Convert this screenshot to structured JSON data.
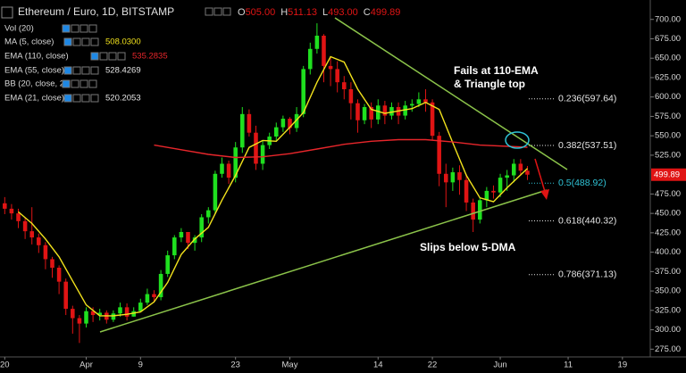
{
  "chart_data": {
    "type": "candlestick",
    "title": "Ethereum / Euro, 1D, BITSTAMP",
    "ohlc_header": [
      {
        "key": "O",
        "value": 505,
        "label": "505.00"
      },
      {
        "key": "H",
        "value": 511.13,
        "label": "511.13"
      },
      {
        "key": "L",
        "value": 493,
        "label": "493.00"
      },
      {
        "key": "C",
        "value": 499.89,
        "label": "499.89"
      }
    ],
    "indicators": [
      {
        "name": "Vol (20)"
      },
      {
        "name": "MA (5, close)",
        "color": "#f2e21c",
        "x": [
          2,
          4,
          6,
          8,
          10,
          12,
          14,
          16,
          18,
          20,
          22,
          24,
          26,
          28,
          30,
          32,
          34,
          36,
          38,
          40,
          42,
          44,
          46,
          48,
          50,
          52,
          54,
          56,
          58,
          60,
          62,
          64,
          66,
          68,
          70,
          72,
          74,
          77
        ],
        "values": [
          452,
          437,
          417,
          394,
          363,
          332,
          318,
          318,
          320,
          323,
          336,
          361,
          397,
          417,
          432,
          467,
          499,
          535,
          544,
          543,
          561,
          580,
          619,
          652,
          645,
          610,
          584,
          579,
          582,
          585,
          593,
          584,
          541,
          499,
          470,
          465,
          483,
          508.03
        ],
        "value_label": "508.0300"
      },
      {
        "name": "EMA (110, close)",
        "color": "#e8262b",
        "x": [
          22,
          26,
          30,
          34,
          38,
          42,
          46,
          50,
          54,
          58,
          62,
          66,
          70,
          77
        ],
        "values": [
          538,
          532,
          526,
          522,
          523,
          527,
          533,
          539,
          543,
          545,
          545,
          542,
          538,
          535.2835
        ]
      },
      {
        "name": "EMA (55, close)",
        "value": 528.4269
      },
      {
        "name": "BB (20, close, 2)"
      },
      {
        "name": "EMA (21, close)",
        "value": 520.2053
      }
    ],
    "candles": {
      "up_color": "#1fe01f",
      "down_color": "#e01414",
      "x": [
        0,
        1,
        2,
        3,
        4,
        5,
        6,
        7,
        8,
        9,
        10,
        11,
        12,
        13,
        14,
        15,
        16,
        17,
        18,
        19,
        20,
        21,
        22,
        23,
        24,
        25,
        26,
        27,
        28,
        29,
        30,
        31,
        32,
        33,
        34,
        35,
        36,
        37,
        38,
        39,
        40,
        41,
        42,
        43,
        44,
        45,
        46,
        47,
        48,
        49,
        50,
        51,
        52,
        53,
        54,
        55,
        56,
        57,
        58,
        59,
        60,
        61,
        62,
        63,
        64,
        65,
        66,
        67,
        68,
        69,
        70,
        71,
        72,
        73,
        74,
        75,
        76,
        77
      ],
      "open": [
        463,
        456,
        450,
        440,
        427,
        419,
        409,
        391,
        380,
        362,
        327,
        315,
        308,
        324,
        319,
        322,
        313,
        321,
        329,
        317,
        324,
        335,
        346,
        342,
        372,
        396,
        419,
        426,
        412,
        419,
        445,
        454,
        501,
        514,
        496,
        535,
        578,
        554,
        514,
        538,
        549,
        561,
        572,
        560,
        578,
        636,
        662,
        679,
        640,
        636,
        619,
        610,
        592,
        570,
        587,
        571,
        589,
        576,
        587,
        576,
        589,
        591,
        597,
        593,
        550,
        501,
        490,
        503,
        493,
        464,
        442,
        467,
        479,
        477,
        496,
        499,
        514,
        505
      ],
      "high": [
        471,
        462,
        456,
        445,
        458,
        424,
        413,
        394,
        383,
        366,
        331,
        319,
        329,
        329,
        327,
        325,
        325,
        335,
        334,
        329,
        340,
        353,
        351,
        377,
        402,
        422,
        431,
        426,
        422,
        449,
        458,
        505,
        522,
        518,
        542,
        587,
        584,
        563,
        544,
        554,
        567,
        576,
        574,
        587,
        640,
        670,
        695,
        681,
        651,
        646,
        627,
        619,
        597,
        591,
        593,
        597,
        595,
        593,
        593,
        595,
        597,
        606,
        610,
        597,
        555,
        514,
        509,
        512,
        501,
        469,
        471,
        484,
        486,
        501,
        506,
        520,
        520,
        511.13
      ],
      "low": [
        449,
        442,
        431,
        417,
        410,
        399,
        378,
        367,
        346,
        319,
        295,
        283,
        303,
        310,
        312,
        308,
        310,
        317,
        312,
        317,
        323,
        332,
        335,
        338,
        368,
        391,
        413,
        404,
        402,
        413,
        437,
        449,
        496,
        488,
        490,
        528,
        549,
        506,
        506,
        533,
        544,
        555,
        552,
        555,
        574,
        629,
        656,
        619,
        614,
        606,
        597,
        571,
        554,
        565,
        560,
        565,
        565,
        571,
        565,
        571,
        581,
        587,
        581,
        544,
        485,
        458,
        479,
        474,
        453,
        426,
        437,
        458,
        469,
        471,
        479,
        490,
        500,
        493
      ],
      "close": [
        456,
        450,
        440,
        427,
        419,
        409,
        391,
        380,
        362,
        327,
        315,
        308,
        324,
        319,
        322,
        313,
        321,
        329,
        317,
        324,
        335,
        346,
        342,
        372,
        396,
        419,
        426,
        412,
        419,
        445,
        454,
        501,
        514,
        496,
        535,
        578,
        554,
        514,
        538,
        549,
        561,
        572,
        560,
        578,
        636,
        662,
        679,
        640,
        636,
        619,
        610,
        592,
        570,
        587,
        571,
        589,
        576,
        587,
        576,
        589,
        591,
        597,
        593,
        550,
        501,
        490,
        503,
        493,
        464,
        442,
        467,
        479,
        477,
        496,
        499,
        514,
        505,
        499.89
      ]
    },
    "last_price": 499.89,
    "fib_levels": [
      {
        "label": "0.236(597.64)",
        "value": 597.64,
        "color": "#e6e6e6"
      },
      {
        "label": "0.382(537.51)",
        "value": 537.51,
        "color": "#e6e6e6"
      },
      {
        "label": "0.5(488.92)",
        "value": 488.92,
        "color": "#2fc3d6"
      },
      {
        "label": "0.618(440.32)",
        "value": 440.32,
        "color": "#e6e6e6"
      },
      {
        "label": "0.786(371.13)",
        "value": 371.13,
        "color": "#e6e6e6"
      }
    ],
    "annotations": [
      "Fails at 110-EMA",
      "& Triangle top",
      "Slips below 5-DMA"
    ],
    "xlim": [
      -0.7,
      95.1
    ],
    "xticks": [
      {
        "value": 0,
        "label": "20"
      },
      {
        "value": 12,
        "label": "Apr"
      },
      {
        "value": 20,
        "label": "9"
      },
      {
        "value": 34,
        "label": "23"
      },
      {
        "value": 42,
        "label": "May"
      },
      {
        "value": 55,
        "label": "14"
      },
      {
        "value": 63,
        "label": "22"
      },
      {
        "value": 73,
        "label": "Jun"
      },
      {
        "value": 83,
        "label": "11"
      },
      {
        "value": 91,
        "label": "19"
      }
    ],
    "ylim": [
      265,
      725
    ],
    "yticks": [
      {
        "value": 700,
        "label": "700.00"
      },
      {
        "value": 675,
        "label": "675.00"
      },
      {
        "value": 650,
        "label": "650.00"
      },
      {
        "value": 625,
        "label": "625.00"
      },
      {
        "value": 600,
        "label": "600.00"
      },
      {
        "value": 575,
        "label": "575.00"
      },
      {
        "value": 550,
        "label": "550.00"
      },
      {
        "value": 525,
        "label": "525.00"
      },
      {
        "value": 475,
        "label": "475.00"
      },
      {
        "value": 450,
        "label": "450.00"
      },
      {
        "value": 425,
        "label": "425.00"
      },
      {
        "value": 400,
        "label": "400.00"
      },
      {
        "value": 375,
        "label": "375.00"
      },
      {
        "value": 350,
        "label": "350.00"
      },
      {
        "value": 325,
        "label": "325.00"
      },
      {
        "value": 300,
        "label": "300.00"
      },
      {
        "value": 275,
        "label": "275.00"
      }
    ],
    "grid": false
  }
}
